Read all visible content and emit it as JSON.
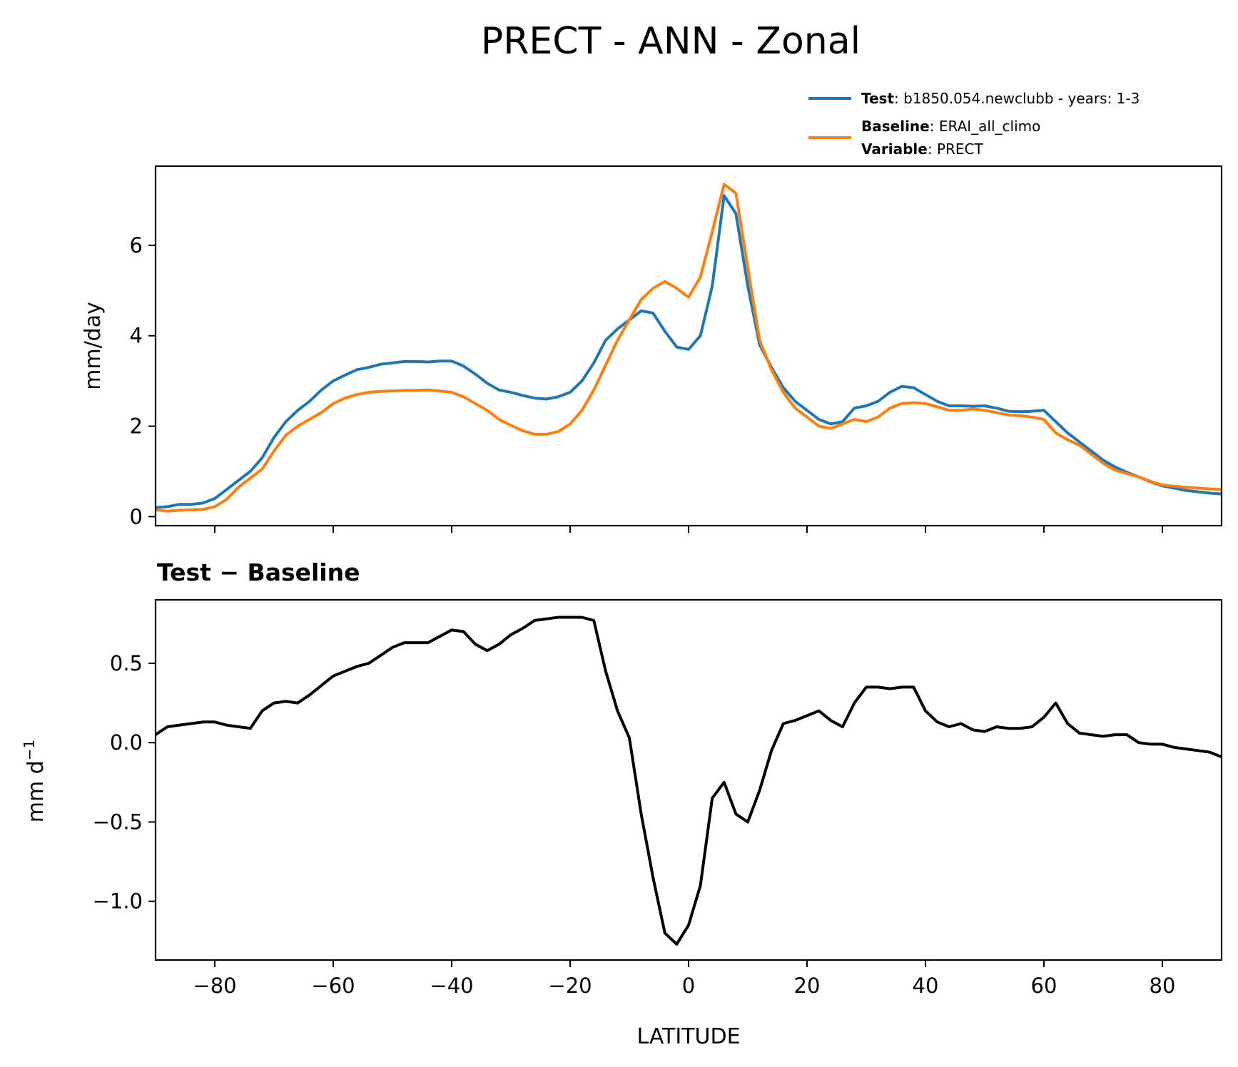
{
  "title": "PRECT - ANN - Zonal",
  "legend": {
    "test": {
      "key": "Test",
      "sep": ": ",
      "text": "b1850.054.newclubb - years: 1-3",
      "color": "#1f77b4"
    },
    "baseline": {
      "key": "Baseline",
      "sep": ": ",
      "text": "ERAI_all_climo",
      "color": "#ff7f0e"
    },
    "variable": {
      "key": "Variable",
      "sep": ": ",
      "text": "PRECT"
    }
  },
  "chart_data": [
    {
      "type": "line",
      "title": "",
      "xlabel": "",
      "ylabel": "mm/day",
      "xlim": [
        -90,
        90
      ],
      "ylim": [
        -0.2,
        7.75
      ],
      "yticks": [
        0,
        2,
        4,
        6
      ],
      "ytick_labels": [
        "0",
        "2",
        "4",
        "6"
      ],
      "xticks": [
        -80,
        -60,
        -40,
        -20,
        0,
        20,
        40,
        60,
        80
      ],
      "legend_position": "above-right",
      "series": [
        {
          "name": "Test",
          "color": "#1f77b4",
          "x": [
            -90,
            -88,
            -86,
            -84,
            -82,
            -80,
            -78,
            -76,
            -74,
            -72,
            -70,
            -68,
            -66,
            -64,
            -62,
            -60,
            -58,
            -56,
            -54,
            -52,
            -50,
            -48,
            -46,
            -44,
            -42,
            -40,
            -38,
            -36,
            -34,
            -32,
            -30,
            -28,
            -26,
            -24,
            -22,
            -20,
            -18,
            -16,
            -14,
            -12,
            -10,
            -8,
            -6,
            -4,
            -2,
            0,
            2,
            4,
            6,
            8,
            10,
            12,
            14,
            16,
            18,
            20,
            22,
            24,
            26,
            28,
            30,
            32,
            34,
            36,
            38,
            40,
            42,
            44,
            46,
            48,
            50,
            52,
            54,
            56,
            58,
            60,
            62,
            64,
            66,
            68,
            70,
            72,
            74,
            76,
            78,
            80,
            82,
            84,
            86,
            88,
            90
          ],
          "y": [
            0.2,
            0.22,
            0.27,
            0.27,
            0.3,
            0.4,
            0.6,
            0.8,
            1.0,
            1.3,
            1.75,
            2.1,
            2.35,
            2.55,
            2.8,
            3.0,
            3.13,
            3.25,
            3.3,
            3.37,
            3.4,
            3.43,
            3.43,
            3.42,
            3.44,
            3.44,
            3.33,
            3.15,
            2.95,
            2.8,
            2.75,
            2.68,
            2.62,
            2.6,
            2.65,
            2.75,
            3.0,
            3.4,
            3.9,
            4.15,
            4.35,
            4.55,
            4.5,
            4.1,
            3.75,
            3.7,
            4.0,
            5.1,
            7.1,
            6.7,
            5.1,
            3.8,
            3.3,
            2.85,
            2.55,
            2.35,
            2.15,
            2.05,
            2.1,
            2.4,
            2.45,
            2.55,
            2.75,
            2.88,
            2.85,
            2.7,
            2.55,
            2.45,
            2.45,
            2.44,
            2.45,
            2.4,
            2.33,
            2.32,
            2.33,
            2.35,
            2.1,
            1.85,
            1.65,
            1.45,
            1.25,
            1.1,
            0.98,
            0.88,
            0.77,
            0.68,
            0.63,
            0.58,
            0.55,
            0.52,
            0.5
          ]
        },
        {
          "name": "Baseline",
          "color": "#ff7f0e",
          "x": [
            -90,
            -88,
            -86,
            -84,
            -82,
            -80,
            -78,
            -76,
            -74,
            -72,
            -70,
            -68,
            -66,
            -64,
            -62,
            -60,
            -58,
            -56,
            -54,
            -52,
            -50,
            -48,
            -46,
            -44,
            -42,
            -40,
            -38,
            -36,
            -34,
            -32,
            -30,
            -28,
            -26,
            -24,
            -22,
            -20,
            -18,
            -16,
            -14,
            -12,
            -10,
            -8,
            -6,
            -4,
            -2,
            0,
            2,
            4,
            6,
            8,
            10,
            12,
            14,
            16,
            18,
            20,
            22,
            24,
            26,
            28,
            30,
            32,
            34,
            36,
            38,
            40,
            42,
            44,
            46,
            48,
            50,
            52,
            54,
            56,
            58,
            60,
            62,
            64,
            66,
            68,
            70,
            72,
            74,
            76,
            78,
            80,
            82,
            84,
            86,
            88,
            90
          ],
          "y": [
            0.15,
            0.12,
            0.14,
            0.15,
            0.16,
            0.22,
            0.38,
            0.65,
            0.85,
            1.05,
            1.45,
            1.8,
            2.0,
            2.15,
            2.3,
            2.5,
            2.62,
            2.7,
            2.75,
            2.77,
            2.78,
            2.79,
            2.79,
            2.8,
            2.78,
            2.75,
            2.65,
            2.5,
            2.35,
            2.15,
            2.02,
            1.9,
            1.82,
            1.82,
            1.88,
            2.05,
            2.35,
            2.8,
            3.35,
            3.9,
            4.35,
            4.8,
            5.05,
            5.2,
            5.05,
            4.85,
            5.3,
            6.3,
            7.35,
            7.15,
            5.5,
            3.9,
            3.25,
            2.75,
            2.4,
            2.2,
            2.0,
            1.95,
            2.05,
            2.15,
            2.1,
            2.2,
            2.4,
            2.5,
            2.52,
            2.5,
            2.43,
            2.35,
            2.35,
            2.38,
            2.35,
            2.3,
            2.25,
            2.23,
            2.2,
            2.15,
            1.85,
            1.7,
            1.58,
            1.38,
            1.18,
            1.03,
            0.95,
            0.88,
            0.78,
            0.7,
            0.67,
            0.65,
            0.63,
            0.61,
            0.6
          ]
        }
      ]
    },
    {
      "type": "line",
      "title": "Test − Baseline",
      "xlabel": "LATITUDE",
      "ylabel": "mm d",
      "ylabel_sup": "−1",
      "xlim": [
        -90,
        90
      ],
      "ylim": [
        -1.37,
        0.9
      ],
      "yticks": [
        -1.0,
        -0.5,
        0.0,
        0.5
      ],
      "ytick_labels": [
        "−1.0",
        "−0.5",
        "0.0",
        "0.5"
      ],
      "xticks": [
        -80,
        -60,
        -40,
        -20,
        0,
        20,
        40,
        60,
        80
      ],
      "xtick_labels": [
        "−80",
        "−60",
        "−40",
        "−20",
        "0",
        "20",
        "40",
        "60",
        "80"
      ],
      "series": [
        {
          "color": "#000000",
          "x": [
            -90,
            -88,
            -86,
            -84,
            -82,
            -80,
            -78,
            -76,
            -74,
            -72,
            -70,
            -68,
            -66,
            -64,
            -62,
            -60,
            -58,
            -56,
            -54,
            -52,
            -50,
            -48,
            -46,
            -44,
            -42,
            -40,
            -38,
            -36,
            -34,
            -32,
            -30,
            -28,
            -26,
            -24,
            -22,
            -20,
            -18,
            -16,
            -14,
            -12,
            -10,
            -8,
            -6,
            -4,
            -2,
            0,
            2,
            4,
            6,
            8,
            10,
            12,
            14,
            16,
            18,
            20,
            22,
            24,
            26,
            28,
            30,
            32,
            34,
            36,
            38,
            40,
            42,
            44,
            46,
            48,
            50,
            52,
            54,
            56,
            58,
            60,
            62,
            64,
            66,
            68,
            70,
            72,
            74,
            76,
            78,
            80,
            82,
            84,
            86,
            88,
            90
          ],
          "y": [
            0.05,
            0.1,
            0.11,
            0.12,
            0.13,
            0.13,
            0.11,
            0.1,
            0.09,
            0.2,
            0.25,
            0.26,
            0.25,
            0.3,
            0.36,
            0.42,
            0.45,
            0.48,
            0.5,
            0.55,
            0.6,
            0.63,
            0.63,
            0.63,
            0.67,
            0.71,
            0.7,
            0.62,
            0.58,
            0.62,
            0.68,
            0.72,
            0.77,
            0.78,
            0.79,
            0.79,
            0.79,
            0.77,
            0.45,
            0.2,
            0.03,
            -0.45,
            -0.85,
            -1.2,
            -1.27,
            -1.15,
            -0.9,
            -0.35,
            -0.25,
            -0.45,
            -0.5,
            -0.3,
            -0.05,
            0.12,
            0.14,
            0.17,
            0.2,
            0.14,
            0.1,
            0.25,
            0.35,
            0.35,
            0.34,
            0.35,
            0.35,
            0.2,
            0.13,
            0.1,
            0.12,
            0.08,
            0.07,
            0.1,
            0.09,
            0.09,
            0.1,
            0.16,
            0.25,
            0.12,
            0.06,
            0.05,
            0.04,
            0.05,
            0.05,
            0.0,
            -0.01,
            -0.01,
            -0.03,
            -0.04,
            -0.05,
            -0.06,
            -0.09
          ]
        }
      ]
    }
  ]
}
